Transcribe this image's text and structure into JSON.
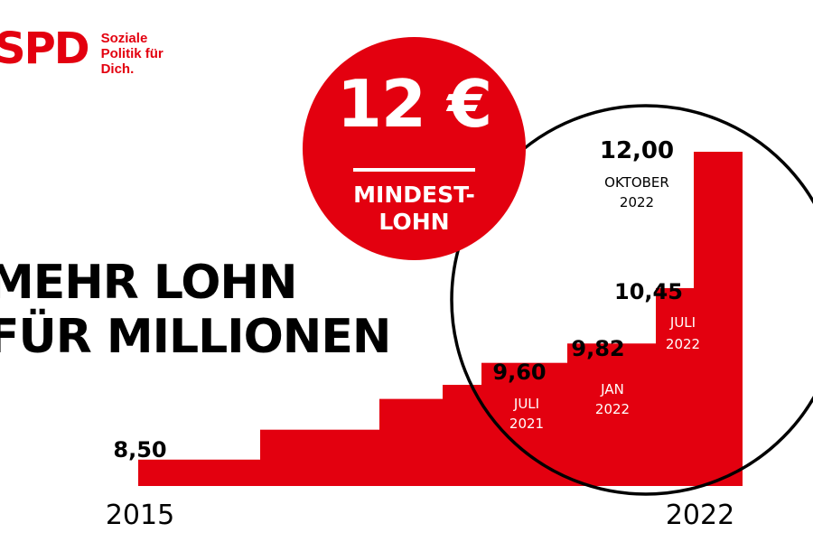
{
  "brand": {
    "logo_text": "SPD",
    "claim": "Soziale\nPolitik für\nDich."
  },
  "headline": {
    "line1": "MEHR LOHN",
    "line2": "FÜR MILLIONEN"
  },
  "badge": {
    "value": "12 €",
    "sub": "MINDEST-\nLOHN"
  },
  "colors": {
    "accent": "#e3000f",
    "text": "#000000",
    "background": "#ffffff"
  },
  "chart_data": {
    "type": "bar",
    "title": "",
    "xlabel": "",
    "ylabel": "",
    "x_start_label": "2015",
    "x_end_label": "2022",
    "values": [
      8.5,
      8.84,
      9.19,
      9.35,
      9.6,
      9.82,
      10.45,
      12.0
    ],
    "value_labels": [
      "8,50",
      "",
      "",
      "",
      "9,60",
      "9,82",
      "10,45",
      "12,00"
    ],
    "date_labels": [
      "",
      "",
      "",
      "",
      "JULI 2021",
      "JAN 2022",
      "JULI 2022",
      "OKTOBER 2022"
    ],
    "ylim": [
      8.2,
      12.0
    ],
    "grid": false,
    "legend": "none",
    "callout": "magnifying circle around the last four steps"
  }
}
